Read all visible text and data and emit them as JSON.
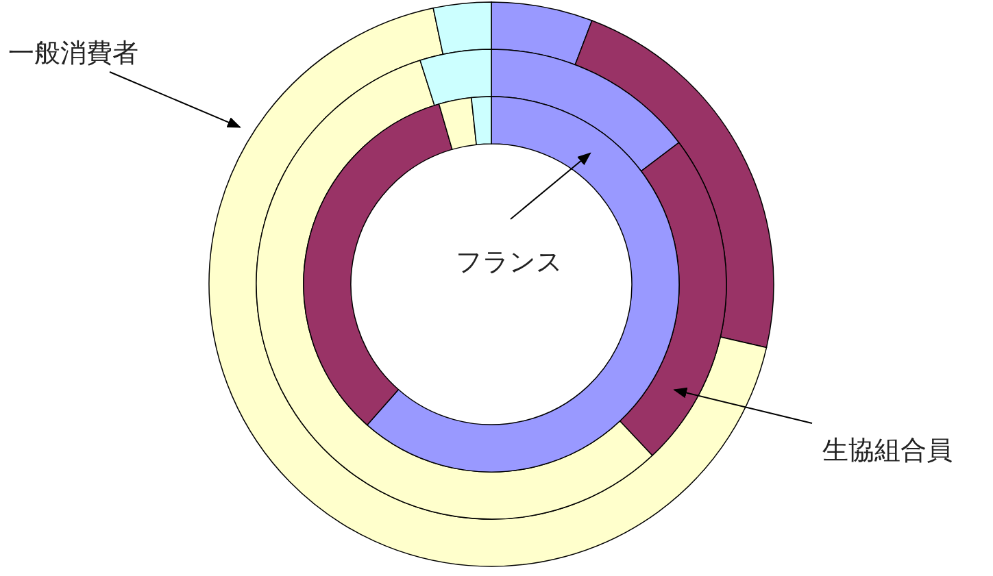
{
  "chart_data": {
    "type": "donut",
    "categories": [
      null,
      null,
      null,
      null
    ],
    "colors": [
      "#9999ff",
      "#993366",
      "#ffffcc",
      "#ccffff"
    ],
    "series": [
      {
        "name": "一般消費者",
        "values": [
          5.8,
          22.8,
          68.1,
          3.3
        ]
      },
      {
        "name": "生協組合員",
        "values": [
          14.7,
          23.3,
          57.1,
          4.9
        ]
      },
      {
        "name": "フランス",
        "values": [
          61.5,
          34.0,
          2.8,
          1.7
        ]
      }
    ]
  }
}
